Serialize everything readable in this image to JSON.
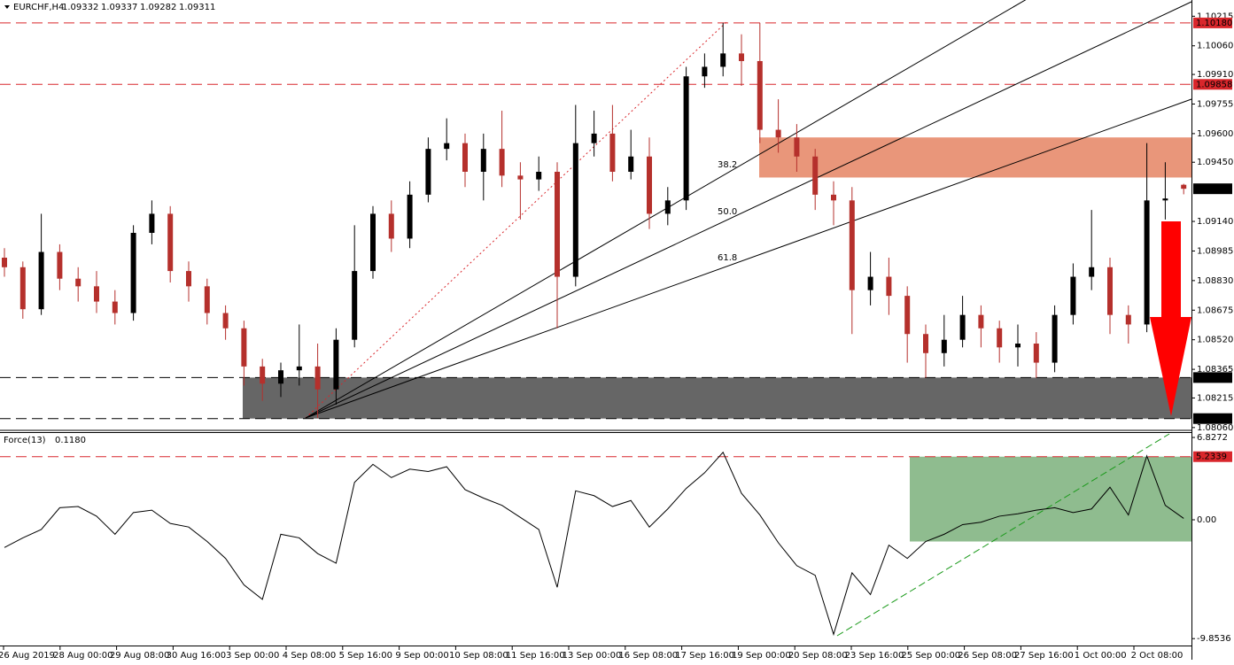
{
  "chart_data": [
    {
      "type": "candlestick",
      "title": "EURCHF,H4",
      "open": [
        1.0895,
        1.089,
        1.0868,
        1.0898,
        1.0884,
        1.088,
        1.0872,
        1.0866,
        1.0908,
        1.0918,
        1.0888,
        1.088,
        1.0866,
        1.0858,
        1.0838,
        1.0829,
        1.0836,
        1.0838,
        1.0826,
        1.0852,
        1.0888,
        1.0918,
        1.0905,
        1.0928,
        1.0952,
        1.0955,
        1.094,
        1.0952,
        1.0938,
        1.0936,
        1.094,
        1.0885,
        1.0955,
        1.096,
        1.094,
        1.0948,
        1.0918,
        1.0925,
        1.099,
        1.0995,
        1.1002,
        1.0998,
        1.0962,
        1.0958,
        1.0948,
        1.0928,
        1.0925,
        1.0878,
        1.0885,
        1.0875,
        1.0855,
        1.0845,
        1.0852,
        1.0865,
        1.0858,
        1.0848,
        1.085,
        1.084,
        1.0865,
        1.0885,
        1.089,
        1.0865,
        1.086,
        1.0925,
        1.09332
      ],
      "high": [
        1.09,
        1.0893,
        1.0918,
        1.0902,
        1.089,
        1.0888,
        1.0878,
        1.0912,
        1.0925,
        1.0922,
        1.0893,
        1.0884,
        1.087,
        1.0862,
        1.0842,
        1.084,
        1.086,
        1.085,
        1.0858,
        1.0912,
        1.0922,
        1.0925,
        1.0935,
        1.0958,
        1.0968,
        1.096,
        1.096,
        1.0972,
        1.0945,
        1.0948,
        1.0945,
        1.0975,
        1.0972,
        1.0975,
        1.0962,
        1.0958,
        1.0932,
        1.0995,
        1.1002,
        1.1018,
        1.1012,
        1.1018,
        1.0978,
        1.0965,
        1.0952,
        1.0935,
        1.0932,
        1.0898,
        1.0895,
        1.088,
        1.086,
        1.0865,
        1.0875,
        1.087,
        1.0862,
        1.086,
        1.0856,
        1.087,
        1.0892,
        1.092,
        1.0895,
        1.087,
        1.0955,
        1.0945,
        1.09337
      ],
      "low": [
        1.0885,
        1.0863,
        1.0865,
        1.0878,
        1.0872,
        1.0866,
        1.086,
        1.0862,
        1.0902,
        1.0882,
        1.0872,
        1.086,
        1.0852,
        1.0828,
        1.082,
        1.0822,
        1.0828,
        1.0811,
        1.0818,
        1.0848,
        1.0884,
        1.0898,
        1.09,
        1.0924,
        1.0946,
        1.0932,
        1.0925,
        1.0932,
        1.0915,
        1.093,
        1.0858,
        1.088,
        1.0948,
        1.0935,
        1.0936,
        1.091,
        1.0912,
        1.092,
        1.0984,
        1.099,
        1.0985,
        1.0955,
        1.095,
        1.094,
        1.092,
        1.0912,
        1.0855,
        1.087,
        1.0865,
        1.084,
        1.0832,
        1.0838,
        1.0848,
        1.0848,
        1.084,
        1.0838,
        1.0832,
        1.0835,
        1.086,
        1.0878,
        1.0855,
        1.085,
        1.0856,
        1.0915,
        1.09282
      ],
      "close": [
        1.089,
        1.0868,
        1.0898,
        1.0884,
        1.088,
        1.0872,
        1.0866,
        1.0908,
        1.0918,
        1.0888,
        1.088,
        1.0866,
        1.0858,
        1.0838,
        1.0829,
        1.0836,
        1.0838,
        1.0826,
        1.0852,
        1.0888,
        1.0918,
        1.0905,
        1.0928,
        1.0952,
        1.0955,
        1.094,
        1.0952,
        1.0938,
        1.0936,
        1.094,
        1.0885,
        1.0955,
        1.096,
        1.094,
        1.0948,
        1.0918,
        1.0925,
        1.099,
        1.0995,
        1.1002,
        1.0998,
        1.0962,
        1.0958,
        1.0948,
        1.0928,
        1.0925,
        1.0878,
        1.0885,
        1.0875,
        1.0855,
        1.0845,
        1.0852,
        1.0865,
        1.0858,
        1.0848,
        1.085,
        1.084,
        1.0865,
        1.0885,
        1.089,
        1.0865,
        1.086,
        1.0925,
        1.0926,
        1.09311
      ],
      "up_color": "#000000",
      "down_color": "#b5302c",
      "ylim": [
        1.0805,
        1.103
      ],
      "yticks": [
        {
          "value": 1.10215,
          "label": "1.10215"
        },
        {
          "value": 1.1006,
          "label": "1.10060"
        },
        {
          "value": 1.0991,
          "label": "1.09910"
        },
        {
          "value": 1.09755,
          "label": "1.09755"
        },
        {
          "value": 1.096,
          "label": "1.09600"
        },
        {
          "value": 1.0945,
          "label": "1.09450"
        },
        {
          "value": 1.0914,
          "label": "1.09140"
        },
        {
          "value": 1.08985,
          "label": "1.08985"
        },
        {
          "value": 1.0883,
          "label": "1.08830"
        },
        {
          "value": 1.08675,
          "label": "1.08675"
        },
        {
          "value": 1.0852,
          "label": "1.08520"
        },
        {
          "value": 1.08365,
          "label": "1.08365"
        },
        {
          "value": 1.08215,
          "label": "1.08215"
        },
        {
          "value": 1.0806,
          "label": "1.08060"
        }
      ],
      "levels": [
        {
          "value": 1.1018,
          "label": "1.10180",
          "color": "#d9262b"
        },
        {
          "value": 1.09858,
          "label": "1.09858",
          "color": "#d9262b"
        },
        {
          "value": 1.08322,
          "label": "1.08322",
          "color": "#000000"
        },
        {
          "value": 1.08107,
          "label": "1.08107",
          "color": "#000000"
        }
      ],
      "zones": [
        {
          "from": 1.0937,
          "to": 1.0958,
          "color": "#e9967a"
        },
        {
          "from": 1.08107,
          "to": 1.08322,
          "color": "#666666"
        }
      ],
      "annotations": [
        "38.2",
        "50.0",
        "61.8"
      ],
      "time_labels": [
        "26 Aug 2019",
        "28 Aug 00:00",
        "29 Aug 08:00",
        "30 Aug 16:00",
        "3 Sep 00:00",
        "4 Sep 08:00",
        "5 Sep 16:00",
        "9 Sep 00:00",
        "10 Sep 08:00",
        "11 Sep 16:00",
        "13 Sep 00:00",
        "16 Sep 08:00",
        "17 Sep 16:00",
        "19 Sep 00:00",
        "20 Sep 08:00",
        "23 Sep 16:00",
        "25 Sep 00:00",
        "26 Sep 08:00",
        "27 Sep 16:00",
        "1 Oct 00:00",
        "2 Oct 08:00"
      ]
    },
    {
      "type": "line",
      "title": "Force(13)",
      "header_value": "0.1180",
      "color": "#000000",
      "values": [
        -2.3,
        -1.5,
        -0.8,
        1,
        1.1,
        0.3,
        -1.2,
        0.6,
        0.8,
        -0.3,
        -0.6,
        -1.8,
        -3.2,
        -5.4,
        -6.6,
        -1.2,
        -1.5,
        -2.8,
        -3.6,
        3.1,
        4.6,
        3.5,
        4.2,
        4.0,
        4.4,
        2.5,
        1.8,
        1.2,
        0.2,
        -0.8,
        -5.6,
        2.4,
        2.0,
        1.1,
        1.6,
        -0.6,
        0.9,
        2.6,
        3.9,
        5.6,
        2.2,
        0.4,
        -1.9,
        -3.8,
        -4.6,
        -9.5,
        -4.4,
        -6.2,
        -2.1,
        -3.2,
        -1.8,
        -1.2,
        -0.4,
        -0.2,
        0.3,
        0.5,
        0.8,
        1.0,
        0.6,
        0.9,
        2.7,
        0.4,
        5.3,
        1.2,
        0.118
      ],
      "ylim": [
        -11.6,
        7.27
      ],
      "yticks": [
        6.8272,
        {
          "value": 0,
          "label": "0.00"
        },
        -9.8536
      ],
      "levels": [
        {
          "value": 5.2339,
          "label": "5.2339",
          "color": "#d9262b"
        }
      ],
      "zones": [
        {
          "from": 5.2339,
          "to": -1.8,
          "color": "#8fbc8f"
        }
      ]
    }
  ]
}
